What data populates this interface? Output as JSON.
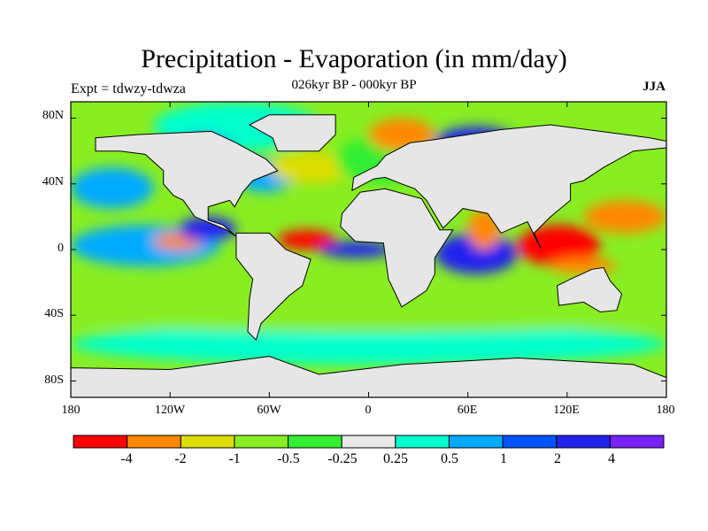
{
  "title": "Precipitation - Evaporation (in mm/day)",
  "subtitle": "026kyr BP - 000kyr BP",
  "left_label": "Expt = tdwzy-tdwza",
  "right_label": "JJA",
  "lat_ticks": [
    "80N",
    "40N",
    "0",
    "40S",
    "80S"
  ],
  "lon_ticks": [
    "180",
    "120W",
    "60W",
    "0",
    "60E",
    "120E",
    "180"
  ],
  "colorbar": {
    "colors": [
      "#ff0000",
      "#ff8800",
      "#dddd00",
      "#88ee22",
      "#33ee33",
      "#e8e8e8",
      "#00ffcc",
      "#00aaff",
      "#0055ff",
      "#2222ee",
      "#7722ff"
    ],
    "labels": [
      "-4",
      "-2",
      "-1",
      "-0.5",
      "-0.25",
      "0.25",
      "0.5",
      "1",
      "2",
      "4"
    ]
  },
  "chart_data": {
    "type": "heatmap",
    "title": "Precipitation - Evaporation (in mm/day)",
    "subtitle": "026kyr BP - 000kyr BP",
    "xlabel": "",
    "ylabel": "",
    "xlim": [
      -180,
      180
    ],
    "ylim": [
      -90,
      90
    ],
    "levels": [
      -4,
      -2,
      -1,
      -0.5,
      -0.25,
      0.25,
      0.5,
      1,
      2,
      4
    ],
    "regions": [
      {
        "lon": [
          -130,
          -30
        ],
        "lat": [
          60,
          90
        ],
        "value": 0.35
      },
      {
        "lon": [
          -120,
          -80
        ],
        "lat": [
          45,
          70
        ],
        "value": 2.5
      },
      {
        "lon": [
          -80,
          -45
        ],
        "lat": [
          35,
          55
        ],
        "value": 0.7
      },
      {
        "lon": [
          -60,
          -10
        ],
        "lat": [
          40,
          60
        ],
        "value": -1.5
      },
      {
        "lon": [
          -20,
          40
        ],
        "lat": [
          40,
          70
        ],
        "value": -0.3
      },
      {
        "lon": [
          0,
          40
        ],
        "lat": [
          60,
          80
        ],
        "value": -2.5
      },
      {
        "lon": [
          40,
          90
        ],
        "lat": [
          55,
          75
        ],
        "value": 3
      },
      {
        "lon": [
          -180,
          -130
        ],
        "lat": [
          25,
          50
        ],
        "value": 1
      },
      {
        "lon": [
          -180,
          -90
        ],
        "lat": [
          -10,
          15
        ],
        "value": 1
      },
      {
        "lon": [
          -130,
          -100
        ],
        "lat": [
          0,
          10
        ],
        "value": -3
      },
      {
        "lon": [
          -115,
          -80
        ],
        "lat": [
          5,
          20
        ],
        "value": 3
      },
      {
        "lon": [
          -55,
          -20
        ],
        "lat": [
          0,
          12
        ],
        "value": -4
      },
      {
        "lon": [
          -30,
          15
        ],
        "lat": [
          -5,
          5
        ],
        "value": 2.5
      },
      {
        "lon": [
          40,
          90
        ],
        "lat": [
          -15,
          10
        ],
        "value": 2.5
      },
      {
        "lon": [
          60,
          80
        ],
        "lat": [
          0,
          25
        ],
        "value": -2
      },
      {
        "lon": [
          90,
          140
        ],
        "lat": [
          -10,
          15
        ],
        "value": -4
      },
      {
        "lon": [
          110,
          150
        ],
        "lat": [
          -15,
          -5
        ],
        "value": -3
      },
      {
        "lon": [
          130,
          180
        ],
        "lat": [
          10,
          30
        ],
        "value": -2
      },
      {
        "lon": [
          -180,
          180
        ],
        "lat": [
          -70,
          -45
        ],
        "value": 0.4
      },
      {
        "lon": [
          -180,
          180
        ],
        "lat": [
          -50,
          -35
        ],
        "value": -0.5
      }
    ]
  }
}
